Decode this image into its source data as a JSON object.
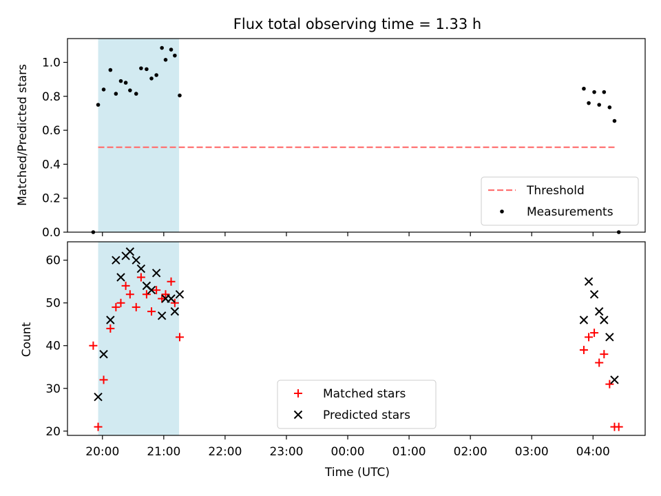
{
  "chart_data": {
    "title": "Flux total observing time = 1.33 h",
    "xlabel": "Time (UTC)",
    "x_ticks": [
      "20:00",
      "21:00",
      "22:00",
      "23:00",
      "00:00",
      "01:00",
      "02:00",
      "03:00",
      "04:00"
    ],
    "x_tick_hours": [
      20,
      21,
      22,
      23,
      24,
      25,
      26,
      27,
      28
    ],
    "xlim_hours": [
      19.43,
      28.85
    ],
    "highlight_span_hours": [
      19.93,
      21.25
    ],
    "colors": {
      "highlight": "#add8e6",
      "threshold": "#ff7070",
      "measurements": "#000000",
      "matched": "#ff0000",
      "predicted": "#000000"
    },
    "panels": [
      {
        "type": "scatter",
        "ylabel": "Matched/Predicted stars",
        "ylim": [
          0.0,
          1.14
        ],
        "y_ticks": [
          "0.0",
          "0.2",
          "0.4",
          "0.6",
          "0.8",
          "1.0"
        ],
        "y_tick_values": [
          0.0,
          0.2,
          0.4,
          0.6,
          0.8,
          1.0
        ],
        "legend_position": "lower-right",
        "threshold": {
          "name": "Threshold",
          "value": 0.5,
          "x_range_hours": [
            19.93,
            28.37
          ]
        },
        "series": [
          {
            "name": "Measurements",
            "x": [
              19.85,
              19.93,
              20.02,
              20.13,
              20.22,
              20.3,
              20.38,
              20.45,
              20.55,
              20.63,
              20.72,
              20.8,
              20.88,
              20.97,
              21.03,
              21.12,
              21.18,
              21.26,
              27.85,
              27.93,
              28.02,
              28.1,
              28.18,
              28.27,
              28.35,
              28.42
            ],
            "y": [
              0.0,
              0.75,
              0.84,
              0.955,
              0.815,
              0.89,
              0.88,
              0.835,
              0.815,
              0.965,
              0.96,
              0.905,
              0.925,
              1.085,
              1.015,
              1.075,
              1.04,
              0.805,
              0.845,
              0.76,
              0.825,
              0.75,
              0.825,
              0.735,
              0.655,
              0.0
            ]
          }
        ]
      },
      {
        "type": "scatter",
        "ylabel": "Count",
        "ylim": [
          19.0,
          64.3
        ],
        "y_ticks": [
          "20",
          "30",
          "40",
          "50",
          "60"
        ],
        "y_tick_values": [
          20,
          30,
          40,
          50,
          60
        ],
        "legend_position": "lower-center",
        "series": [
          {
            "name": "Matched stars",
            "marker": "plus",
            "x": [
              19.85,
              19.93,
              20.02,
              20.13,
              20.22,
              20.3,
              20.38,
              20.45,
              20.55,
              20.63,
              20.72,
              20.8,
              20.88,
              20.97,
              21.03,
              21.12,
              21.18,
              21.26,
              27.85,
              27.93,
              28.02,
              28.1,
              28.18,
              28.27,
              28.35,
              28.42
            ],
            "y": [
              40,
              21,
              32,
              44,
              49,
              50,
              54,
              52,
              49,
              56,
              52,
              48,
              53,
              51,
              52,
              55,
              50,
              42,
              39,
              42,
              43,
              36,
              38,
              31,
              21,
              21
            ]
          },
          {
            "name": "Predicted stars",
            "marker": "x",
            "x": [
              19.93,
              20.02,
              20.13,
              20.22,
              20.3,
              20.38,
              20.45,
              20.55,
              20.63,
              20.72,
              20.8,
              20.88,
              20.97,
              21.03,
              21.12,
              21.18,
              21.26,
              27.85,
              27.93,
              28.02,
              28.1,
              28.18,
              28.27,
              28.35
            ],
            "y": [
              28,
              38,
              46,
              60,
              56,
              61,
              62,
              60,
              58,
              54,
              53,
              57,
              47,
              51,
              51,
              48,
              52,
              46,
              55,
              52,
              48,
              46,
              42,
              32
            ]
          }
        ]
      }
    ]
  }
}
